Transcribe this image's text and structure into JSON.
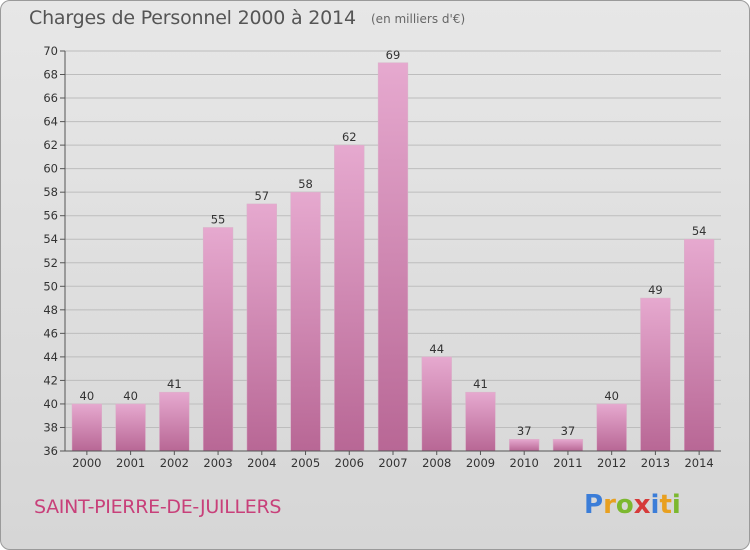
{
  "header": {
    "title": "Charges de Personnel 2000 à 2014",
    "subtitle": "(en milliers d'€)"
  },
  "footer": {
    "city": "SAINT-PIERRE-DE-JUILLERS",
    "logo": [
      "P",
      "r",
      "o",
      "x",
      "i",
      "t",
      "i"
    ],
    "logo_colors": [
      "#3b7dd8",
      "#e8a020",
      "#7cb82f",
      "#d63a3a",
      "#3b7dd8",
      "#e8a020",
      "#7cb82f"
    ]
  },
  "colors": {
    "bar_top": "#e6a9cf",
    "bar_bottom": "#b86795",
    "grid": "#bdbdbd"
  },
  "chart_data": {
    "type": "bar",
    "categories": [
      "2000",
      "2001",
      "2002",
      "2003",
      "2004",
      "2005",
      "2006",
      "2007",
      "2008",
      "2009",
      "2010",
      "2011",
      "2012",
      "2013",
      "2014"
    ],
    "values": [
      40,
      40,
      41,
      55,
      57,
      58,
      62,
      69,
      44,
      41,
      37,
      37,
      40,
      49,
      54
    ],
    "data_labels": [
      "40",
      "40",
      "41",
      "55",
      "57",
      "58",
      "62",
      "69",
      "44",
      "41",
      "37",
      "37",
      "40",
      "49",
      "54"
    ],
    "ylim": [
      36,
      70
    ],
    "yticks": [
      36,
      38,
      40,
      42,
      44,
      46,
      48,
      50,
      52,
      54,
      56,
      58,
      60,
      62,
      64,
      66,
      68,
      70
    ],
    "grid": true,
    "xlabel": "",
    "ylabel": ""
  }
}
